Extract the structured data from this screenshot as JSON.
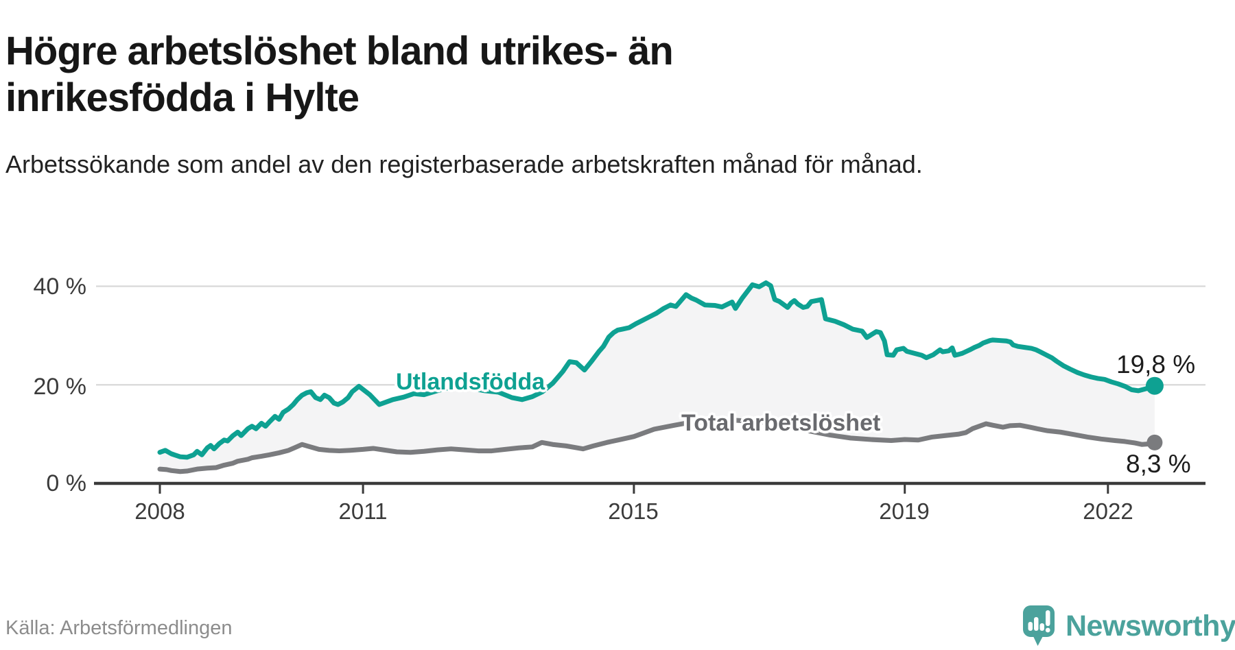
{
  "header": {
    "title": "Högre arbetslöshet bland utrikes- än inrikesfödda i Hylte",
    "subtitle": "Arbetssökande som andel av den registerbaserade arbetskraften månad för månad."
  },
  "footer": {
    "source": "Källa: Arbetsförmedlingen",
    "brand": "Newsworthy"
  },
  "colors": {
    "foreign_line": "#0ea192",
    "total_line": "#7a7b7e",
    "total_label_text": "#696a6e",
    "area_fill": "#f4f4f5",
    "grid": "#d8d8d8",
    "axis": "#3a3a3a",
    "end_label_text": "#1c1c1c",
    "brand_teal": "#4ba29c"
  },
  "chart_data": {
    "type": "line",
    "title": "Högre arbetslöshet bland utrikes- än inrikesfödda i Hylte",
    "subtitle": "Arbetssökande som andel av den registerbaserade arbetskraften månad för månad.",
    "unit": "%",
    "grid": "horizontal-only",
    "legend_position": "inline-line-labels",
    "xlim": [
      2007.06,
      2023.44
    ],
    "ylim": [
      0,
      44
    ],
    "x_ticks": {
      "values": [
        2008,
        2011,
        2015,
        2019,
        2022
      ],
      "labels": [
        "2008",
        "2011",
        "2015",
        "2019",
        "2022"
      ]
    },
    "y_ticks": {
      "values": [
        0,
        20,
        40
      ],
      "labels": [
        "0 %",
        "20 %",
        "40 %"
      ]
    },
    "series": [
      {
        "name": "Utlandsfödda",
        "color": "#0ea192",
        "end_label": "19,8 %",
        "end_value": 19.8,
        "points": [
          [
            2008.0,
            6.3
          ],
          [
            2008.08,
            6.7
          ],
          [
            2008.17,
            6.0
          ],
          [
            2008.3,
            5.4
          ],
          [
            2008.4,
            5.3
          ],
          [
            2008.5,
            5.8
          ],
          [
            2008.55,
            6.5
          ],
          [
            2008.62,
            5.8
          ],
          [
            2008.7,
            7.2
          ],
          [
            2008.75,
            7.7
          ],
          [
            2008.8,
            7.0
          ],
          [
            2008.88,
            8.1
          ],
          [
            2008.95,
            8.8
          ],
          [
            2009.0,
            8.6
          ],
          [
            2009.08,
            9.7
          ],
          [
            2009.15,
            10.4
          ],
          [
            2009.2,
            9.7
          ],
          [
            2009.3,
            11.1
          ],
          [
            2009.36,
            11.6
          ],
          [
            2009.42,
            11.1
          ],
          [
            2009.5,
            12.2
          ],
          [
            2009.56,
            11.6
          ],
          [
            2009.62,
            12.5
          ],
          [
            2009.7,
            13.6
          ],
          [
            2009.76,
            13.0
          ],
          [
            2009.82,
            14.4
          ],
          [
            2009.9,
            15.1
          ],
          [
            2009.97,
            16.0
          ],
          [
            2010.03,
            17.0
          ],
          [
            2010.1,
            17.9
          ],
          [
            2010.17,
            18.4
          ],
          [
            2010.23,
            18.6
          ],
          [
            2010.3,
            17.4
          ],
          [
            2010.37,
            17.0
          ],
          [
            2010.43,
            17.9
          ],
          [
            2010.5,
            17.4
          ],
          [
            2010.57,
            16.3
          ],
          [
            2010.63,
            16.0
          ],
          [
            2010.7,
            16.5
          ],
          [
            2010.78,
            17.4
          ],
          [
            2010.84,
            18.6
          ],
          [
            2010.94,
            19.7
          ],
          [
            2011.1,
            18.0
          ],
          [
            2011.24,
            16.0
          ],
          [
            2011.44,
            17.0
          ],
          [
            2011.6,
            17.5
          ],
          [
            2011.75,
            18.2
          ],
          [
            2011.9,
            18.0
          ],
          [
            2012.05,
            18.6
          ],
          [
            2012.2,
            19.2
          ],
          [
            2012.4,
            19.6
          ],
          [
            2012.6,
            19.3
          ],
          [
            2012.8,
            18.8
          ],
          [
            2013.0,
            18.5
          ],
          [
            2013.2,
            17.4
          ],
          [
            2013.35,
            17.0
          ],
          [
            2013.5,
            17.6
          ],
          [
            2013.65,
            18.6
          ],
          [
            2013.8,
            20.3
          ],
          [
            2013.95,
            22.7
          ],
          [
            2014.05,
            24.7
          ],
          [
            2014.15,
            24.5
          ],
          [
            2014.27,
            23.0
          ],
          [
            2014.37,
            24.7
          ],
          [
            2014.48,
            26.7
          ],
          [
            2014.55,
            27.8
          ],
          [
            2014.63,
            29.7
          ],
          [
            2014.7,
            30.6
          ],
          [
            2014.76,
            31.1
          ],
          [
            2014.83,
            31.3
          ],
          [
            2014.93,
            31.6
          ],
          [
            2015.03,
            32.4
          ],
          [
            2015.13,
            33.1
          ],
          [
            2015.23,
            33.8
          ],
          [
            2015.33,
            34.5
          ],
          [
            2015.44,
            35.5
          ],
          [
            2015.54,
            36.2
          ],
          [
            2015.62,
            35.9
          ],
          [
            2015.77,
            38.3
          ],
          [
            2015.85,
            37.6
          ],
          [
            2015.92,
            37.2
          ],
          [
            2016.05,
            36.2
          ],
          [
            2016.2,
            36.1
          ],
          [
            2016.3,
            35.8
          ],
          [
            2016.45,
            36.8
          ],
          [
            2016.5,
            35.5
          ],
          [
            2016.6,
            37.6
          ],
          [
            2016.75,
            40.3
          ],
          [
            2016.85,
            39.9
          ],
          [
            2016.95,
            40.7
          ],
          [
            2017.02,
            40.1
          ],
          [
            2017.08,
            37.3
          ],
          [
            2017.15,
            36.9
          ],
          [
            2017.2,
            36.4
          ],
          [
            2017.27,
            35.7
          ],
          [
            2017.32,
            36.6
          ],
          [
            2017.37,
            37.1
          ],
          [
            2017.42,
            36.4
          ],
          [
            2017.5,
            35.7
          ],
          [
            2017.56,
            35.9
          ],
          [
            2017.62,
            36.9
          ],
          [
            2017.7,
            37.1
          ],
          [
            2017.77,
            37.3
          ],
          [
            2017.83,
            33.4
          ],
          [
            2017.97,
            32.9
          ],
          [
            2018.1,
            32.2
          ],
          [
            2018.23,
            31.3
          ],
          [
            2018.37,
            30.9
          ],
          [
            2018.44,
            29.6
          ],
          [
            2018.58,
            30.8
          ],
          [
            2018.64,
            30.6
          ],
          [
            2018.7,
            28.9
          ],
          [
            2018.74,
            26.1
          ],
          [
            2018.83,
            26.0
          ],
          [
            2018.88,
            27.1
          ],
          [
            2018.98,
            27.4
          ],
          [
            2019.03,
            26.8
          ],
          [
            2019.14,
            26.4
          ],
          [
            2019.25,
            26.0
          ],
          [
            2019.32,
            25.5
          ],
          [
            2019.42,
            26.1
          ],
          [
            2019.52,
            27.1
          ],
          [
            2019.56,
            26.7
          ],
          [
            2019.65,
            26.9
          ],
          [
            2019.7,
            27.5
          ],
          [
            2019.74,
            26.0
          ],
          [
            2019.8,
            26.2
          ],
          [
            2019.85,
            26.4
          ],
          [
            2019.96,
            27.1
          ],
          [
            2020.03,
            27.6
          ],
          [
            2020.1,
            28.0
          ],
          [
            2020.16,
            28.5
          ],
          [
            2020.26,
            29.0
          ],
          [
            2020.3,
            29.1
          ],
          [
            2020.4,
            29.0
          ],
          [
            2020.5,
            28.9
          ],
          [
            2020.56,
            28.7
          ],
          [
            2020.6,
            28.1
          ],
          [
            2020.67,
            27.8
          ],
          [
            2020.77,
            27.6
          ],
          [
            2020.87,
            27.4
          ],
          [
            2020.94,
            27.1
          ],
          [
            2021.0,
            26.7
          ],
          [
            2021.07,
            26.2
          ],
          [
            2021.17,
            25.5
          ],
          [
            2021.24,
            24.8
          ],
          [
            2021.34,
            23.9
          ],
          [
            2021.44,
            23.2
          ],
          [
            2021.55,
            22.5
          ],
          [
            2021.65,
            22.0
          ],
          [
            2021.75,
            21.6
          ],
          [
            2021.85,
            21.3
          ],
          [
            2021.95,
            21.1
          ],
          [
            2022.05,
            20.6
          ],
          [
            2022.15,
            20.2
          ],
          [
            2022.25,
            19.7
          ],
          [
            2022.35,
            19.0
          ],
          [
            2022.45,
            18.8
          ],
          [
            2022.56,
            19.2
          ],
          [
            2022.69,
            19.8
          ]
        ]
      },
      {
        "name": "Total arbetslöshet",
        "color": "#7a7b7e",
        "end_label": "8,3 %",
        "end_value": 8.3,
        "points": [
          [
            2008.0,
            2.9
          ],
          [
            2008.1,
            2.8
          ],
          [
            2008.17,
            2.6
          ],
          [
            2008.3,
            2.4
          ],
          [
            2008.4,
            2.5
          ],
          [
            2008.55,
            2.9
          ],
          [
            2008.7,
            3.1
          ],
          [
            2008.83,
            3.2
          ],
          [
            2008.95,
            3.7
          ],
          [
            2009.08,
            4.1
          ],
          [
            2009.15,
            4.5
          ],
          [
            2009.3,
            4.9
          ],
          [
            2009.36,
            5.2
          ],
          [
            2009.5,
            5.5
          ],
          [
            2009.62,
            5.8
          ],
          [
            2009.76,
            6.2
          ],
          [
            2009.9,
            6.7
          ],
          [
            2010.0,
            7.3
          ],
          [
            2010.1,
            7.9
          ],
          [
            2010.2,
            7.5
          ],
          [
            2010.35,
            6.9
          ],
          [
            2010.5,
            6.7
          ],
          [
            2010.65,
            6.6
          ],
          [
            2010.8,
            6.7
          ],
          [
            2011.0,
            6.9
          ],
          [
            2011.15,
            7.1
          ],
          [
            2011.3,
            6.8
          ],
          [
            2011.5,
            6.4
          ],
          [
            2011.7,
            6.3
          ],
          [
            2011.9,
            6.5
          ],
          [
            2012.1,
            6.8
          ],
          [
            2012.3,
            7.0
          ],
          [
            2012.5,
            6.8
          ],
          [
            2012.7,
            6.6
          ],
          [
            2012.9,
            6.6
          ],
          [
            2013.1,
            6.9
          ],
          [
            2013.3,
            7.2
          ],
          [
            2013.5,
            7.4
          ],
          [
            2013.64,
            8.3
          ],
          [
            2013.8,
            7.9
          ],
          [
            2014.0,
            7.6
          ],
          [
            2014.25,
            7.0
          ],
          [
            2014.4,
            7.6
          ],
          [
            2014.6,
            8.3
          ],
          [
            2014.8,
            8.9
          ],
          [
            2015.0,
            9.5
          ],
          [
            2015.3,
            11.0
          ],
          [
            2015.6,
            11.8
          ],
          [
            2015.8,
            12.3
          ],
          [
            2016.0,
            12.4
          ],
          [
            2016.25,
            12.6
          ],
          [
            2016.5,
            12.8
          ],
          [
            2016.75,
            12.6
          ],
          [
            2017.0,
            12.3
          ],
          [
            2017.3,
            11.5
          ],
          [
            2017.6,
            10.6
          ],
          [
            2017.9,
            9.8
          ],
          [
            2018.2,
            9.2
          ],
          [
            2018.5,
            8.9
          ],
          [
            2018.8,
            8.7
          ],
          [
            2019.0,
            8.9
          ],
          [
            2019.2,
            8.8
          ],
          [
            2019.4,
            9.4
          ],
          [
            2019.6,
            9.7
          ],
          [
            2019.8,
            10.0
          ],
          [
            2019.9,
            10.3
          ],
          [
            2020.0,
            11.1
          ],
          [
            2020.2,
            12.1
          ],
          [
            2020.3,
            11.8
          ],
          [
            2020.45,
            11.4
          ],
          [
            2020.55,
            11.7
          ],
          [
            2020.7,
            11.8
          ],
          [
            2020.85,
            11.4
          ],
          [
            2020.95,
            11.1
          ],
          [
            2021.1,
            10.7
          ],
          [
            2021.3,
            10.4
          ],
          [
            2021.5,
            9.9
          ],
          [
            2021.7,
            9.4
          ],
          [
            2021.9,
            9.0
          ],
          [
            2022.1,
            8.7
          ],
          [
            2022.25,
            8.5
          ],
          [
            2022.4,
            8.2
          ],
          [
            2022.5,
            7.9
          ],
          [
            2022.6,
            8.0
          ],
          [
            2022.69,
            8.3
          ]
        ]
      }
    ]
  }
}
